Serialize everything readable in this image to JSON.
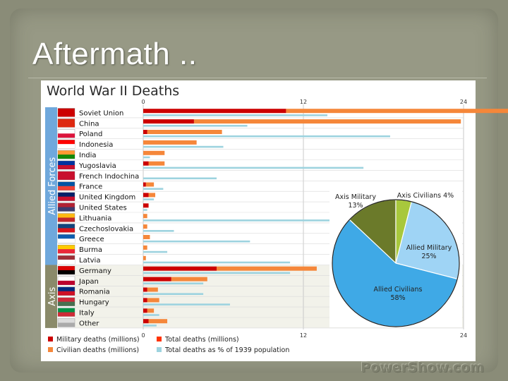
{
  "slide": {
    "title": "Aftermath .."
  },
  "watermark": "PowerShow.com",
  "colors": {
    "military": "#cc0000",
    "total": "#ff3300",
    "civilian": "#f5873a",
    "percent": "#9dd3df",
    "allied_band": "#6fa8dc",
    "axis_band": "#8a8a6a"
  },
  "chart_data": [
    {
      "type": "bar",
      "title": "World War II Deaths",
      "groups": [
        {
          "label": "Allied Forces",
          "countries": [
            "Soviet Union",
            "China",
            "Poland",
            "Indonesia",
            "India",
            "Yugoslavia",
            "French Indochina",
            "France",
            "United Kingdom",
            "United States",
            "Lithuania",
            "Czechoslovakia",
            "Greece",
            "Burma",
            "Latvia"
          ]
        },
        {
          "label": "Axis",
          "countries": [
            "Germany",
            "Japan",
            "Romania",
            "Hungary",
            "Italy",
            "Other"
          ]
        }
      ],
      "categories": [
        "Soviet Union",
        "China",
        "Poland",
        "Indonesia",
        "India",
        "Yugoslavia",
        "French Indochina",
        "France",
        "United Kingdom",
        "United States",
        "Lithuania",
        "Czechoslovakia",
        "Greece",
        "Burma",
        "Latvia",
        "Germany",
        "Japan",
        "Romania",
        "Hungary",
        "Italy",
        "Other"
      ],
      "series": [
        {
          "name": "Military deaths (millions)",
          "values": [
            10.7,
            3.8,
            0.3,
            0,
            0,
            0.4,
            0,
            0.2,
            0.4,
            0.4,
            0,
            0,
            0,
            0,
            0,
            5.5,
            2.1,
            0.3,
            0.3,
            0.3,
            0.4
          ]
        },
        {
          "name": "Civilian deaths (millions)",
          "values": [
            13.0,
            16.2,
            5.3,
            4.0,
            1.6,
            0.8,
            0,
            0.4,
            0.1,
            0,
            0.3,
            0.3,
            0.5,
            0.3,
            0.2,
            2.0,
            0.6,
            0.5,
            0.6,
            0.2,
            1.0
          ]
        },
        {
          "name": "Total deaths (millions)",
          "values": [
            23.7,
            20.0,
            5.6,
            4.0,
            1.6,
            1.2,
            0,
            0.6,
            0.5,
            0.4,
            0.3,
            0.3,
            0.5,
            0.3,
            0.2,
            7.5,
            2.7,
            0.8,
            0.9,
            0.5,
            1.4
          ]
        },
        {
          "name": "Total deaths as % of 1939 population",
          "values": [
            13.8,
            7.8,
            18.5,
            6.0,
            0.5,
            16.5,
            5.5,
            1.5,
            0.8,
            0.3,
            14.0,
            2.3,
            8.0,
            1.8,
            11.0,
            11.0,
            4.5,
            4.5,
            6.5,
            1.2,
            1.0
          ]
        }
      ],
      "x_ticks": [
        "0",
        "12",
        "24"
      ],
      "xlim": [
        0,
        24
      ],
      "legend": [
        "Military deaths (millions)",
        "Total deaths (millions)",
        "Civilian deaths (millions)",
        "Total deaths as % of 1939 population"
      ],
      "legend_position": "bottom",
      "grid": true
    },
    {
      "type": "pie",
      "slices": [
        {
          "label": "Axis Military",
          "value": 13,
          "value_label": "13%",
          "color": "#6b7a2a"
        },
        {
          "label": "Axis Civilians",
          "value": 4,
          "value_label": "4%",
          "color": "#a8c83c"
        },
        {
          "label": "Allied Military",
          "value": 25,
          "value_label": "25%",
          "color": "#9fd4f5"
        },
        {
          "label": "Allied Civilians",
          "value": 58,
          "value_label": "58%",
          "color": "#3fa9e6"
        }
      ]
    }
  ]
}
